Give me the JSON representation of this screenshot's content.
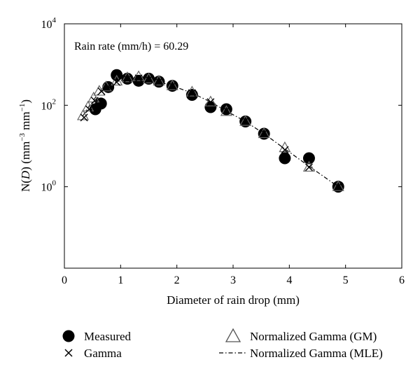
{
  "chart_data": {
    "type": "scatter",
    "xlabel": "Diameter of rain drop (mm)",
    "ylabel_parts": [
      "N(",
      "D",
      ") (mm",
      "−3",
      " mm",
      "−1",
      ")"
    ],
    "annotation": "Rain rate (mm/h) = 60.29",
    "xlim": [
      0,
      6
    ],
    "ylim": [
      0.01,
      10000
    ],
    "yscale": "log",
    "grid": false,
    "x_ticks": [
      0,
      1,
      2,
      3,
      4,
      5,
      6
    ],
    "y_ticks": [
      {
        "value": 1,
        "base": "10",
        "exp": "0"
      },
      {
        "value": 100,
        "base": "10",
        "exp": "2"
      },
      {
        "value": 10000,
        "base": "10",
        "exp": "4"
      }
    ],
    "legend_position": "bottom",
    "series": [
      {
        "name": "Measured",
        "marker": "filled-circle",
        "points": [
          [
            0.55,
            80
          ],
          [
            0.65,
            110
          ],
          [
            0.78,
            280
          ],
          [
            0.93,
            550
          ],
          [
            1.12,
            450
          ],
          [
            1.32,
            400
          ],
          [
            1.5,
            450
          ],
          [
            1.68,
            380
          ],
          [
            1.92,
            300
          ],
          [
            2.27,
            180
          ],
          [
            2.6,
            90
          ],
          [
            2.88,
            80
          ],
          [
            3.22,
            40
          ],
          [
            3.55,
            20
          ],
          [
            3.92,
            5
          ],
          [
            4.35,
            5
          ],
          [
            4.87,
            1
          ]
        ]
      },
      {
        "name": "Gamma",
        "marker": "x",
        "points": [
          [
            0.35,
            50
          ],
          [
            0.44,
            80
          ],
          [
            0.54,
            130
          ],
          [
            0.66,
            220
          ],
          [
            0.78,
            290
          ],
          [
            0.93,
            370
          ],
          [
            1.12,
            440
          ],
          [
            1.32,
            460
          ],
          [
            1.5,
            430
          ],
          [
            1.68,
            380
          ],
          [
            1.92,
            300
          ],
          [
            2.27,
            200
          ],
          [
            2.6,
            120
          ],
          [
            2.88,
            75
          ],
          [
            3.22,
            42
          ],
          [
            3.55,
            21
          ],
          [
            3.92,
            8
          ],
          [
            4.35,
            3
          ],
          [
            4.87,
            1
          ]
        ]
      },
      {
        "name": "Normalized Gamma (GM)",
        "marker": "open-triangle",
        "points": [
          [
            0.33,
            55
          ],
          [
            0.42,
            90
          ],
          [
            0.52,
            150
          ],
          [
            0.62,
            220
          ],
          [
            0.74,
            280
          ],
          [
            0.93,
            390
          ],
          [
            1.12,
            470
          ],
          [
            1.32,
            500
          ],
          [
            1.5,
            440
          ],
          [
            1.68,
            390
          ],
          [
            1.92,
            300
          ],
          [
            2.27,
            210
          ],
          [
            2.6,
            120
          ],
          [
            2.88,
            70
          ],
          [
            3.22,
            40
          ],
          [
            3.55,
            20
          ],
          [
            3.92,
            9
          ],
          [
            4.35,
            3
          ],
          [
            4.87,
            1
          ]
        ]
      },
      {
        "name": "Normalized Gamma (MLE)",
        "marker": "dash-dot-line",
        "points": [
          [
            0.33,
            55
          ],
          [
            0.45,
            100
          ],
          [
            0.6,
            190
          ],
          [
            0.75,
            280
          ],
          [
            0.93,
            380
          ],
          [
            1.12,
            440
          ],
          [
            1.32,
            450
          ],
          [
            1.5,
            420
          ],
          [
            1.7,
            370
          ],
          [
            1.92,
            300
          ],
          [
            2.27,
            200
          ],
          [
            2.6,
            120
          ],
          [
            2.88,
            72
          ],
          [
            3.22,
            40
          ],
          [
            3.55,
            20
          ],
          [
            3.92,
            8.5
          ],
          [
            4.35,
            3.2
          ],
          [
            4.87,
            1
          ]
        ]
      }
    ]
  }
}
